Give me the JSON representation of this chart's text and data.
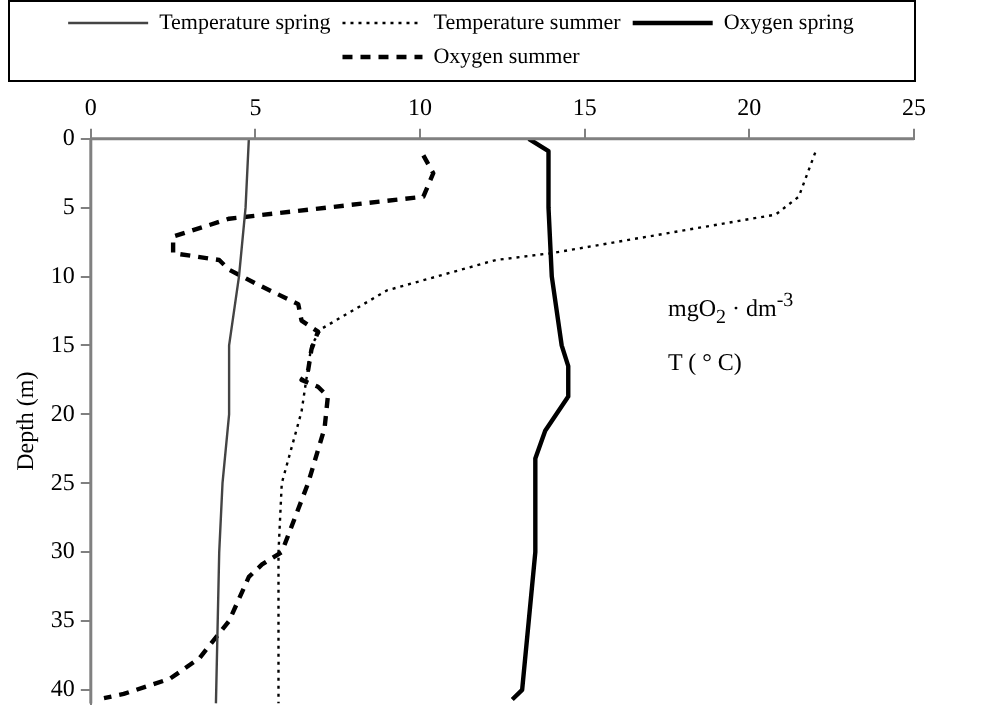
{
  "chart_data": {
    "type": "line",
    "ylabel": "Depth (m)",
    "xlim": [
      0,
      25
    ],
    "xticks": [
      0,
      5,
      10,
      15,
      20,
      25
    ],
    "ylim": [
      41,
      0
    ],
    "yticks": [
      0,
      5,
      10,
      15,
      20,
      25,
      30,
      35,
      40
    ],
    "grid": false,
    "legend": "top",
    "marker": "none",
    "annotations": [
      "mgO$_{2}$ · dm$^{-3}$",
      "T ( ° C)"
    ],
    "series": [
      {
        "name": "Temperature spring",
        "color": "#444444",
        "line_style": "solid",
        "x": [
          4.8,
          4.7,
          4.5,
          4.2,
          4.2,
          4.0,
          3.9,
          3.8
        ],
        "values": [
          0,
          5,
          10,
          15,
          20,
          25,
          30,
          41
        ]
      },
      {
        "name": "Temperature summer",
        "color": "#000000",
        "line_style": "dotted",
        "x": [
          22.0,
          21.5,
          20.8,
          14.0,
          12.3,
          9.0,
          7.0,
          6.7,
          6.4,
          5.8,
          5.7,
          5.7
        ],
        "values": [
          1,
          4.2,
          5.5,
          8.3,
          8.8,
          11,
          13.8,
          15,
          19.8,
          25,
          30,
          41
        ]
      },
      {
        "name": "Oxygen spring",
        "color": "#000000",
        "line_style": "solid",
        "x": [
          13.3,
          13.9,
          13.9,
          14.0,
          14.3,
          14.5,
          14.5,
          13.8,
          13.5,
          13.5,
          13.3,
          13.1,
          12.8
        ],
        "values": [
          0,
          0.9,
          5,
          10,
          15,
          16.5,
          18.7,
          21.2,
          23.2,
          30,
          35,
          40,
          40.7
        ]
      },
      {
        "name": "Oxygen summer",
        "color": "#000000",
        "line_style": "dashed",
        "x": [
          10.1,
          10.4,
          10.1,
          4.2,
          2.5,
          2.5,
          3.9,
          4.2,
          5.0,
          6.3,
          6.4,
          6.9,
          6.7,
          6.6,
          6.4,
          6.9,
          7.2,
          7.1,
          6.6,
          5.8,
          5.2,
          4.8,
          4.2,
          3.3,
          2.4,
          1.0,
          0.4
        ],
        "values": [
          1.2,
          2.5,
          4.2,
          5.8,
          7.1,
          8.3,
          8.8,
          9.5,
          10.5,
          12,
          13.2,
          14,
          15.3,
          16.8,
          17.5,
          18,
          18.7,
          21,
          25,
          30,
          30.9,
          31.8,
          35,
          37.7,
          39.2,
          40.3,
          40.6
        ]
      }
    ]
  }
}
